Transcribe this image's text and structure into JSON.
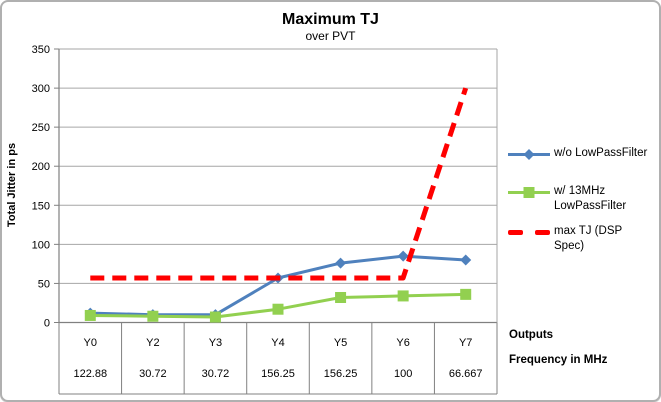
{
  "frame": {
    "background": "#FFFFFF",
    "border_color": "#B0B0B0"
  },
  "chart_data": {
    "type": "line",
    "title": "Maximum TJ",
    "subtitle": "over PVT",
    "ylabel": "Total Jitter in ps",
    "ylim": [
      0,
      350
    ],
    "ytick_step": 50,
    "grid": true,
    "legend_position": "right",
    "categories": [
      "Y0",
      "Y2",
      "Y3",
      "Y4",
      "Y5",
      "Y6",
      "Y7"
    ],
    "x_axis_rows": [
      {
        "label": "Outputs",
        "values": [
          "Y0",
          "Y2",
          "Y3",
          "Y4",
          "Y5",
          "Y6",
          "Y7"
        ]
      },
      {
        "label": "Frequency in MHz",
        "values": [
          "122.88",
          "30.72",
          "30.72",
          "156.25",
          "156.25",
          "100",
          "66.667"
        ]
      }
    ],
    "series": [
      {
        "name": "w/o LowPassFilter",
        "marker": "diamond",
        "color": "#4F81BD",
        "dash": null,
        "values": [
          12,
          10,
          10,
          57,
          76,
          85,
          80
        ]
      },
      {
        "name": "w/ 13MHz LowPassFilter",
        "marker": "square",
        "color": "#92D050",
        "dash": null,
        "values": [
          9,
          8,
          7,
          17,
          32,
          34,
          36
        ]
      },
      {
        "name": "max TJ (DSP Spec)",
        "marker": "none",
        "color": "#FF0000",
        "dash": [
          14,
          8
        ],
        "values": [
          57,
          57,
          57,
          57,
          57,
          57,
          300
        ]
      }
    ],
    "colors": {
      "gridline": "#A6A6A6",
      "axis": "#808080",
      "text": "#000000"
    }
  }
}
